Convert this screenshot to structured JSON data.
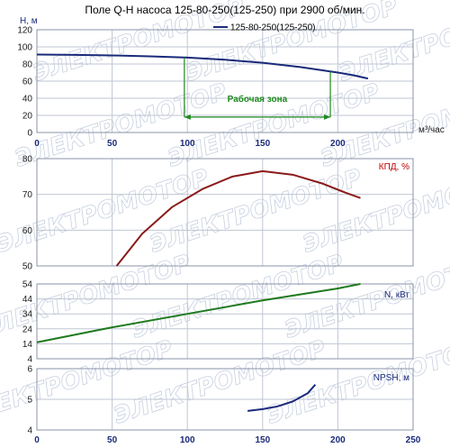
{
  "title": "Поле Q-H насоса 125-80-250(125-250) при 2900 об/мин.",
  "x_unit": "м³/час",
  "watermark": "ЭЛЕКТРОМОТОР",
  "colors": {
    "qh": "#1a2a7a",
    "eff": "#8b1a1a",
    "power": "#1e7a1e",
    "npsh": "#1a2a7a",
    "zone": "#1e8a1e",
    "grid": "#bfc6d3"
  },
  "chart_data": [
    {
      "type": "line",
      "ylabel": "H, м",
      "xlabel": "м³/час",
      "xlim": [
        0,
        250
      ],
      "ylim": [
        0,
        120
      ],
      "x_ticks": [
        0,
        50,
        100,
        150,
        200
      ],
      "y_ticks": [
        0,
        20,
        40,
        60,
        80,
        100,
        120
      ],
      "legend": "top-right",
      "series": [
        {
          "name": "125-80-250(125-250)",
          "x": [
            0,
            25,
            50,
            75,
            100,
            125,
            150,
            175,
            200,
            210,
            220
          ],
          "y": [
            91,
            90.7,
            90,
            89,
            87.5,
            85,
            81.5,
            76.5,
            70,
            67,
            63
          ]
        }
      ],
      "annotation": {
        "text": "Рабочая зона",
        "x_from": 98,
        "x_to": 195,
        "y_arrow": 18
      }
    },
    {
      "type": "line",
      "ylabel": "КПД, %",
      "xlim": [
        0,
        250
      ],
      "ylim": [
        50,
        80
      ],
      "y_ticks": [
        50,
        60,
        70,
        80
      ],
      "series": [
        {
          "name": "",
          "x": [
            53,
            70,
            90,
            110,
            130,
            150,
            170,
            190,
            205,
            215
          ],
          "y": [
            50,
            59,
            66.5,
            71.5,
            75,
            76.5,
            75.5,
            73,
            70.5,
            69
          ]
        }
      ]
    },
    {
      "type": "line",
      "ylabel": "N, кВт",
      "xlim": [
        0,
        250
      ],
      "ylim": [
        4,
        54
      ],
      "y_ticks": [
        4,
        14,
        24,
        34,
        44,
        54
      ],
      "series": [
        {
          "name": "",
          "x": [
            0,
            50,
            100,
            150,
            200,
            215
          ],
          "y": [
            15,
            25,
            34,
            43,
            51,
            54
          ]
        }
      ]
    },
    {
      "type": "line",
      "ylabel": "NPSH, м",
      "xlim": [
        0,
        250
      ],
      "ylim": [
        4,
        6
      ],
      "y_ticks": [
        4,
        5,
        6
      ],
      "x_ticks": [
        0,
        50,
        100,
        150,
        200,
        250
      ],
      "series": [
        {
          "name": "",
          "x": [
            140,
            150,
            160,
            170,
            180,
            185
          ],
          "y": [
            4.62,
            4.68,
            4.77,
            4.93,
            5.2,
            5.48
          ]
        }
      ]
    }
  ]
}
